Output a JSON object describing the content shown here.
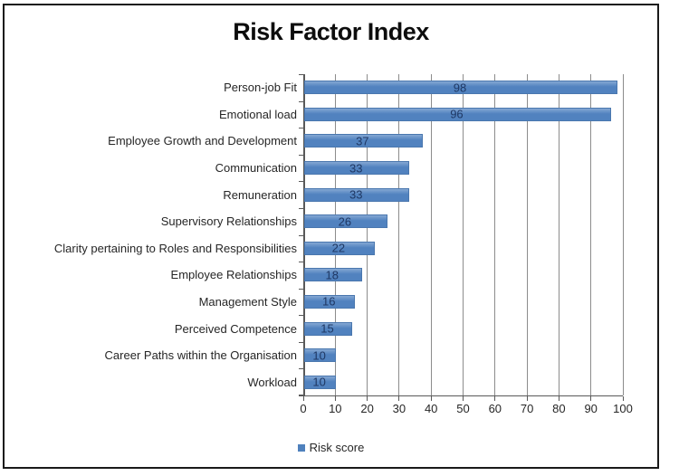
{
  "chart_data": {
    "type": "bar",
    "orientation": "horizontal",
    "title": "Risk Factor Index",
    "series_name": "Risk score",
    "categories": [
      "Person-job Fit",
      "Emotional load",
      "Employee Growth and Development",
      "Communication",
      "Remuneration",
      "Supervisory Relationships",
      "Clarity pertaining to Roles and Responsibilities",
      "Employee Relationships",
      "Management Style",
      "Perceived Competence",
      "Career Paths within the Organisation",
      "Workload"
    ],
    "values": [
      98,
      96,
      37,
      33,
      33,
      26,
      22,
      18,
      16,
      15,
      10,
      10
    ],
    "data_labels": "center",
    "xlim": [
      0,
      100
    ],
    "x_ticks": [
      0,
      10,
      20,
      30,
      40,
      50,
      60,
      70,
      80,
      90,
      100
    ],
    "grid": true,
    "legend_position": "bottom"
  },
  "colors": {
    "bar_fill": "#5182bf",
    "bar_fill_light": "#84a7d3",
    "bar_border": "#4a77ae",
    "gridline": "#8c8c8c",
    "axis": "#595959",
    "data_label": "#1f3864",
    "text": "#262626",
    "title": "#0d0d0d",
    "frame_border": "#1a1a1a",
    "legend_marker": "#4f81bd"
  }
}
